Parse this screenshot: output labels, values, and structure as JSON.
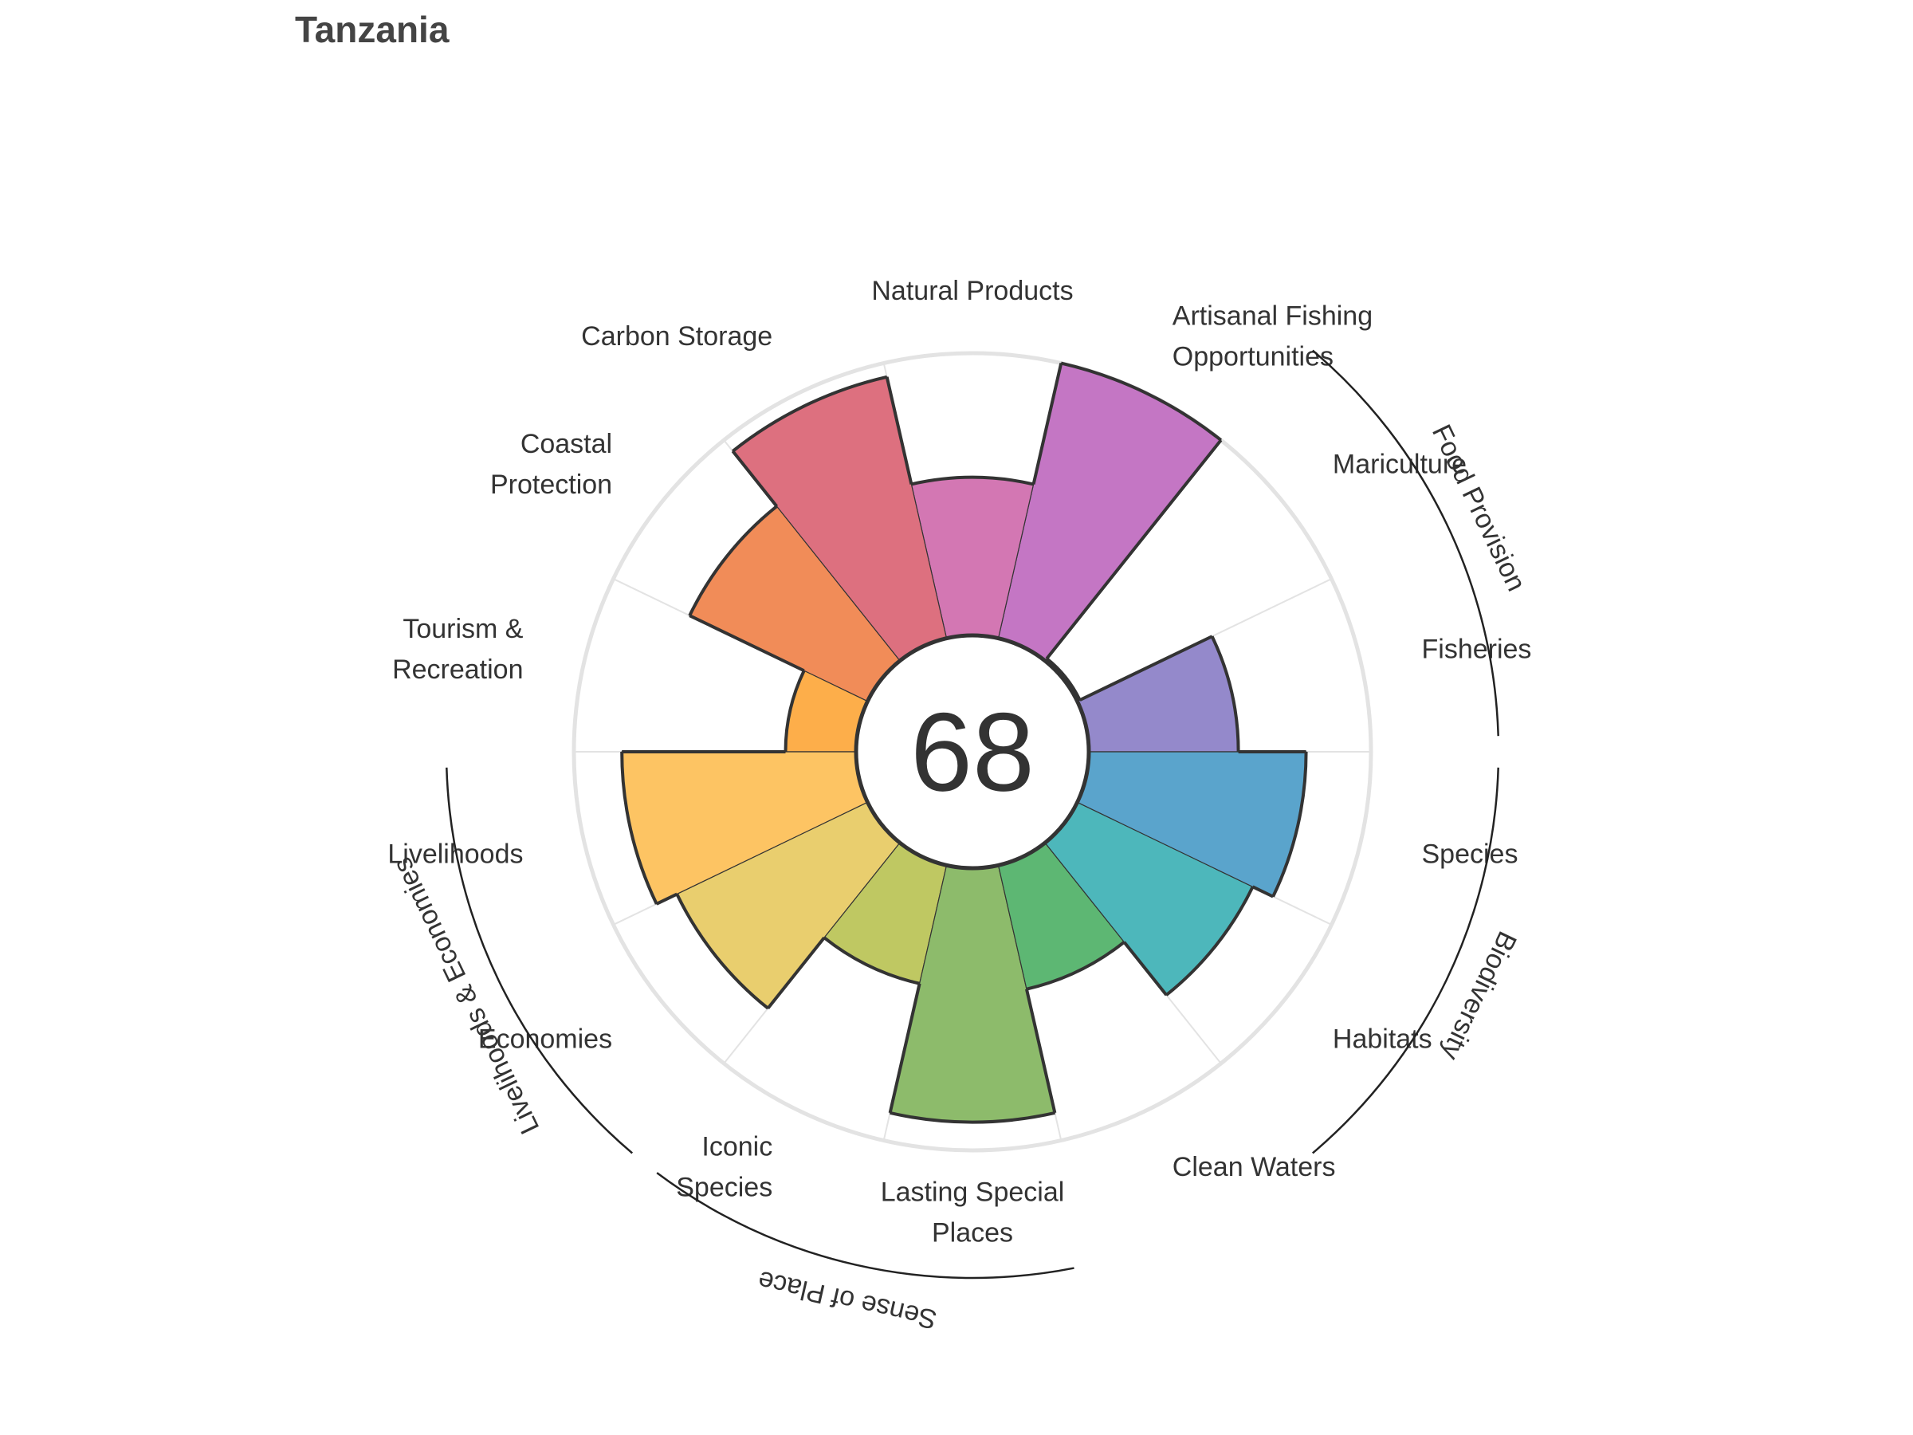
{
  "title": "Tanzania",
  "chart_data": {
    "type": "polar-bar",
    "title": "Tanzania",
    "overall_score": "68",
    "ylim": [
      0,
      100
    ],
    "categories": [
      {
        "label": [
          "Fisheries"
        ],
        "value": 53,
        "color": "#9489CB",
        "group": "food"
      },
      {
        "label": [
          "Mariculture"
        ],
        "value": 1,
        "color": "#A98DD0",
        "group": "food"
      },
      {
        "label": [
          "Artisanal Fishing",
          "Opportunities"
        ],
        "value": 100,
        "color": "#C476C4",
        "group": null
      },
      {
        "label": [
          "Natural Products"
        ],
        "value": 56,
        "color": "#D377B3",
        "group": null
      },
      {
        "label": [
          "Carbon Storage"
        ],
        "value": 95,
        "color": "#DD707F",
        "group": null
      },
      {
        "label": [
          "Coastal",
          "Protection"
        ],
        "value": 70,
        "color": "#F18C58",
        "group": null
      },
      {
        "label": [
          "Tourism &",
          "Recreation"
        ],
        "value": 25,
        "color": "#FDAE4A",
        "group": null
      },
      {
        "label": [
          "Livelihoods"
        ],
        "value": 83,
        "color": "#FDC463",
        "group": "livelihoods"
      },
      {
        "label": [
          "Economies"
        ],
        "value": 75,
        "color": "#E9CE6E",
        "group": "livelihoods"
      },
      {
        "label": [
          "Iconic",
          "Species"
        ],
        "value": 43,
        "color": "#BFC862",
        "group": "sense"
      },
      {
        "label": [
          "Lasting Special",
          "Places"
        ],
        "value": 90,
        "color": "#8DBB6B",
        "group": "sense"
      },
      {
        "label": [
          "Clean Waters"
        ],
        "value": 45,
        "color": "#5DB773",
        "group": null
      },
      {
        "label": [
          "Habitats"
        ],
        "value": 69,
        "color": "#4DB7BB",
        "group": "biodiversity"
      },
      {
        "label": [
          "Species"
        ],
        "value": 77,
        "color": "#5AA4CC",
        "group": "biodiversity"
      }
    ],
    "groups": [
      {
        "id": "food",
        "label": "Food Provision"
      },
      {
        "id": "biodiversity",
        "label": "Biodiversity"
      },
      {
        "id": "sense",
        "label": "Sense of Place"
      },
      {
        "id": "livelihoods",
        "label": "Livelihoods & Economies"
      }
    ],
    "grid": true
  }
}
